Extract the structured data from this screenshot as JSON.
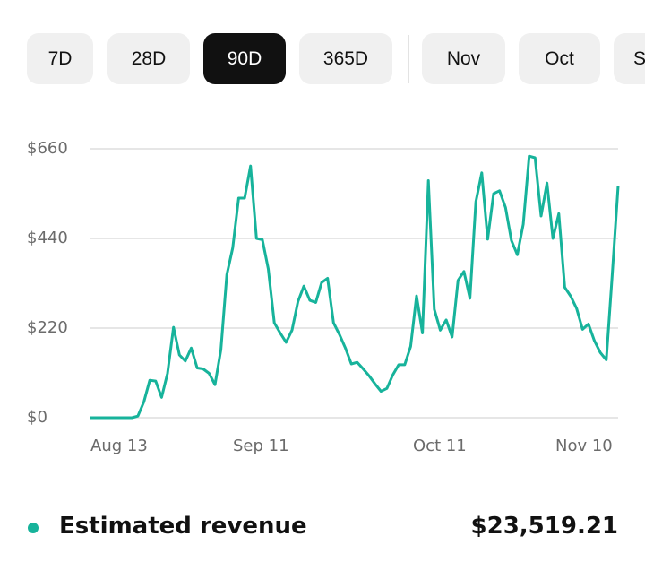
{
  "tabs": [
    {
      "label": "7D",
      "selected": false
    },
    {
      "label": "28D",
      "selected": false
    },
    {
      "label": "90D",
      "selected": true
    },
    {
      "label": "365D",
      "selected": false
    },
    {
      "label": "Nov",
      "selected": false
    },
    {
      "label": "Oct",
      "selected": false
    },
    {
      "label": "S",
      "selected": false
    }
  ],
  "legend": {
    "label": "Estimated revenue",
    "total": "$23,519.21",
    "color": "#17b39b"
  },
  "chart_data": {
    "type": "line",
    "grid": true,
    "y_ticks": [
      "$0",
      "$220",
      "$440",
      "$660"
    ],
    "y_tick_values": [
      0,
      220,
      440,
      660
    ],
    "ylim": [
      0,
      660
    ],
    "x_ticks": [
      "Aug 13",
      "Sep 11",
      "Oct 11",
      "Nov 10"
    ],
    "series": [
      {
        "color": "#17b39b",
        "values": [
          0,
          0,
          0,
          0,
          0,
          0,
          0,
          0,
          4,
          39,
          92,
          90,
          50,
          109,
          222,
          154,
          139,
          171,
          122,
          120,
          109,
          81,
          167,
          351,
          417,
          539,
          539,
          618,
          440,
          437,
          365,
          233,
          208,
          185,
          215,
          285,
          323,
          288,
          283,
          332,
          342,
          233,
          204,
          171,
          132,
          136,
          120,
          103,
          83,
          65,
          72,
          105,
          130,
          130,
          175,
          299,
          208,
          582,
          266,
          215,
          240,
          198,
          337,
          359,
          293,
          530,
          601,
          438,
          550,
          557,
          516,
          435,
          400,
          475,
          642,
          638,
          495,
          576,
          440,
          501,
          320,
          298,
          268,
          217,
          230,
          189,
          160,
          142,
          350,
          569
        ]
      }
    ]
  }
}
